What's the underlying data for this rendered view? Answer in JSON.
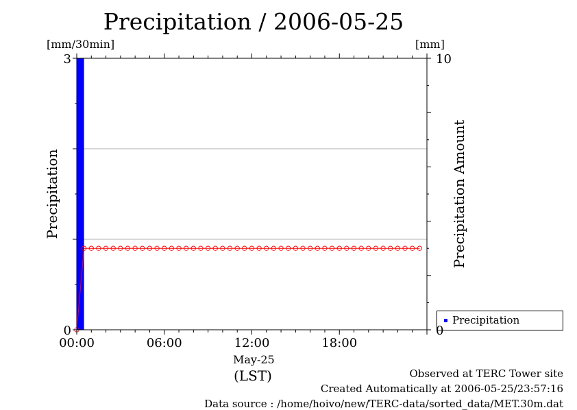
{
  "chart_data": {
    "type": "bar",
    "title": "Precipitation / 2006-05-25",
    "ylabel_left": "Precipitation",
    "ylabel_right": "Precipitation Amount",
    "unit_left": "[mm/30min]",
    "unit_right": "[mm]",
    "xlabel": "May-25",
    "xunit": "(LST)",
    "x_ticks": [
      "00:00",
      "06:00",
      "12:00",
      "18:00"
    ],
    "x_range_hours": [
      0,
      24
    ],
    "ylim_left": [
      0,
      3
    ],
    "ylim_right": [
      0,
      10
    ],
    "y_ticks_left": [
      "0",
      "3"
    ],
    "y_ticks_right": [
      "0",
      "10"
    ],
    "grid": true,
    "legend": [
      "Precipitation"
    ],
    "series": [
      {
        "name": "Precipitation",
        "kind": "bar",
        "axis": "left",
        "color": "#0000ff",
        "points": [
          {
            "x": 0.0,
            "value": 3.0
          },
          {
            "x": 0.5,
            "value": 0.0
          }
        ]
      },
      {
        "name": "Precipitation Amount",
        "kind": "line",
        "axis": "right",
        "color": "#ff0000",
        "x": [
          0.0,
          0.5,
          1.0,
          1.5,
          2.0,
          2.5,
          3.0,
          3.5,
          4.0,
          4.5,
          5.0,
          5.5,
          6.0,
          6.5,
          7.0,
          7.5,
          8.0,
          8.5,
          9.0,
          9.5,
          10.0,
          10.5,
          11.0,
          11.5,
          12.0,
          12.5,
          13.0,
          13.5,
          14.0,
          14.5,
          15.0,
          15.5,
          16.0,
          16.5,
          17.0,
          17.5,
          18.0,
          18.5,
          19.0,
          19.5,
          20.0,
          20.5,
          21.0,
          21.5,
          22.0,
          22.5,
          23.0,
          23.5
        ],
        "values": [
          0.0,
          3.0,
          3.0,
          3.0,
          3.0,
          3.0,
          3.0,
          3.0,
          3.0,
          3.0,
          3.0,
          3.0,
          3.0,
          3.0,
          3.0,
          3.0,
          3.0,
          3.0,
          3.0,
          3.0,
          3.0,
          3.0,
          3.0,
          3.0,
          3.0,
          3.0,
          3.0,
          3.0,
          3.0,
          3.0,
          3.0,
          3.0,
          3.0,
          3.0,
          3.0,
          3.0,
          3.0,
          3.0,
          3.0,
          3.0,
          3.0,
          3.0,
          3.0,
          3.0,
          3.0,
          3.0,
          3.0,
          3.0
        ]
      }
    ]
  },
  "footer": {
    "observed": "Observed at TERC Tower site",
    "created": "Created Automatically at 2006-05-25/23:57:16",
    "source": "Data source : /home/hoivo/new/TERC-data/sorted_data/MET.30m.dat"
  }
}
